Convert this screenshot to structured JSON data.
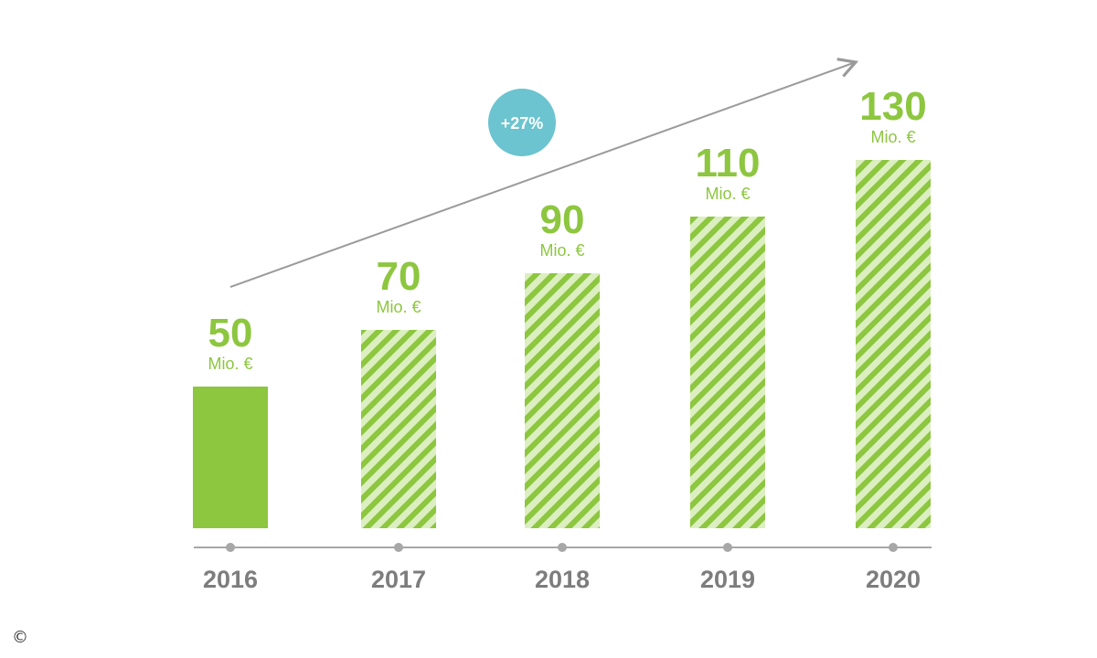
{
  "chart_data": {
    "type": "bar",
    "categories": [
      "2016",
      "2017",
      "2018",
      "2019",
      "2020"
    ],
    "values": [
      50,
      70,
      90,
      110,
      130
    ],
    "value_unit": "Mio. €",
    "value_labels": [
      "50",
      "70",
      "90",
      "110",
      "130"
    ],
    "bar_styles": [
      "solid",
      "hatched",
      "hatched",
      "hatched",
      "hatched"
    ],
    "title": "",
    "xlabel": "",
    "ylabel": "",
    "ylim": [
      0,
      130
    ],
    "grid": false,
    "legend": "none"
  },
  "trend": {
    "label": "+27%"
  },
  "colors": {
    "bar": "#8dc63f",
    "hatch_light": "#dcefc1",
    "value_text": "#8dc63f",
    "axis": "#a7a7a7",
    "tick_text": "#7d7d7d",
    "trend_arrow": "#9a9a9a",
    "badge": "#6bc4cf"
  },
  "footer": {
    "copyright_symbol": "©"
  }
}
